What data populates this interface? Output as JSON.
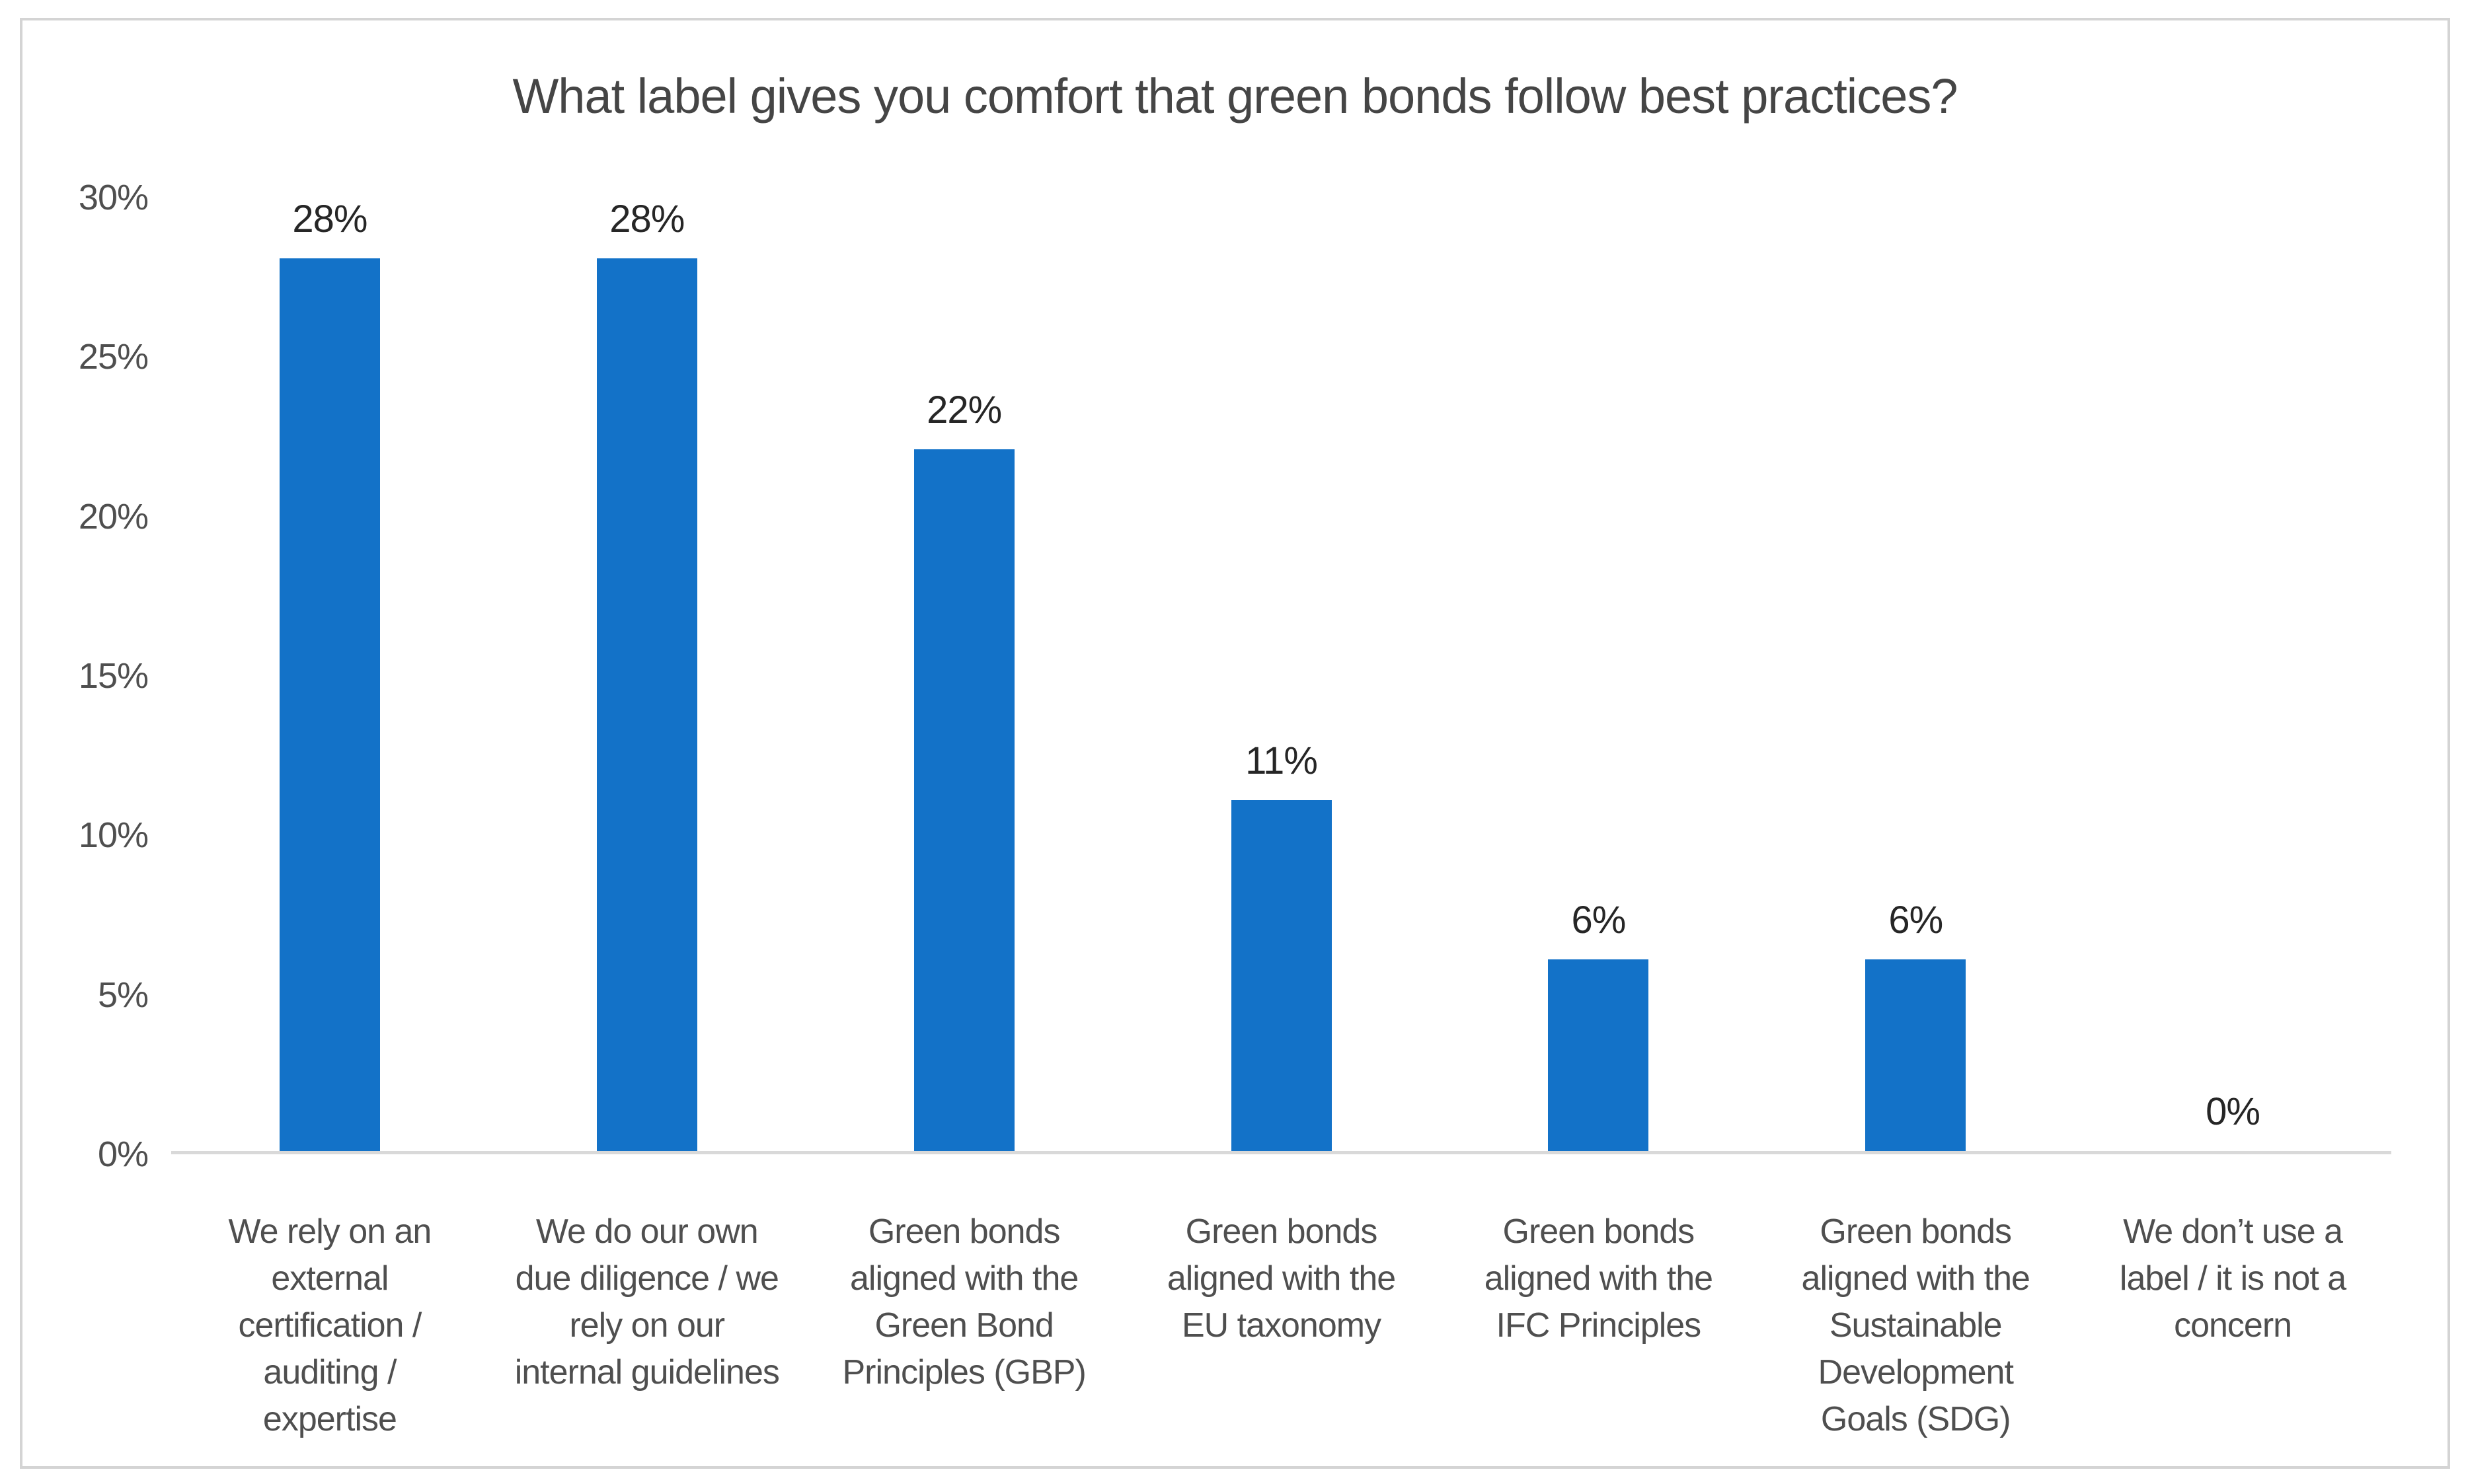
{
  "chart_data": {
    "type": "bar",
    "title": "What label gives you comfort that green bonds follow best practices?",
    "categories": [
      "We rely on an external certification / auditing / expertise",
      "We do our own due diligence / we rely on our internal guidelines",
      "Green bonds aligned with the Green Bond Principles (GBP)",
      "Green bonds aligned with the EU taxonomy",
      "Green bonds aligned with the IFC Principles",
      "Green bonds aligned with the Sustainable Development Goals (SDG)",
      "We don’t use a label / it is not a concern"
    ],
    "categories_display": [
      "We rely on an\nexternal\ncertification /\nauditing /\nexpertise",
      "We do our own\ndue diligence / we\nrely on our\ninternal guidelines",
      "Green bonds\naligned with the\nGreen Bond\nPrinciples (GBP)",
      "Green bonds\naligned with the\nEU taxonomy",
      "Green bonds\naligned with the\nIFC Principles",
      "Green bonds\naligned with the\nSustainable\nDevelopment\nGoals (SDG)",
      "We don’t use a\nlabel / it is not a\nconcern"
    ],
    "values": [
      28,
      28,
      22,
      11,
      6,
      6,
      0
    ],
    "value_labels": [
      "28%",
      "28%",
      "22%",
      "11%",
      "6%",
      "6%",
      "0%"
    ],
    "y_ticks": [
      "30%",
      "25%",
      "20%",
      "15%",
      "10%",
      "5%",
      "0%"
    ],
    "ylim": [
      0,
      30
    ],
    "xlabel": "",
    "ylabel": "",
    "grid": false,
    "legend": "none",
    "bar_color": "#1372c8",
    "axis_line_color": "#d9d9d9",
    "text_color": "#4f4f4f",
    "data_label_color": "#262626"
  }
}
